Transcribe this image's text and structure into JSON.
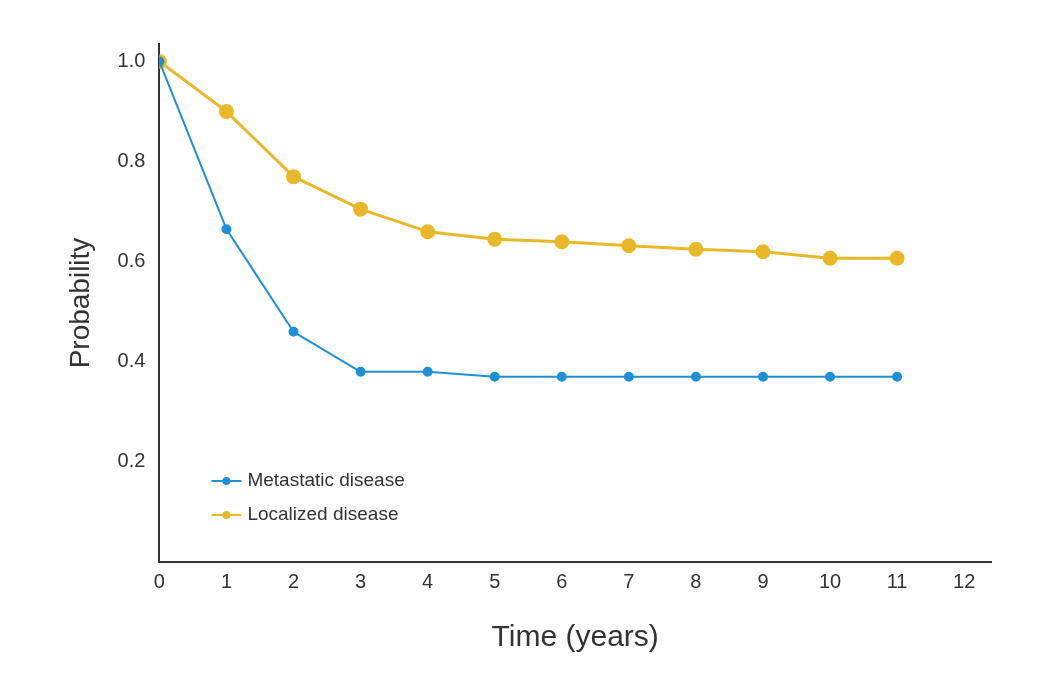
{
  "chart_data": {
    "type": "line",
    "xlabel": "Time (years)",
    "ylabel": "Probability",
    "x": [
      0,
      1,
      2,
      3,
      4,
      5,
      6,
      7,
      8,
      9,
      10,
      11
    ],
    "series": [
      {
        "name": "Metastatic disease",
        "color": "#1f8fd6",
        "values": [
          1.0,
          0.665,
          0.46,
          0.38,
          0.38,
          0.37,
          0.37,
          0.37,
          0.37,
          0.37,
          0.37,
          0.37
        ]
      },
      {
        "name": "Localized disease",
        "color": "#e8b828",
        "values": [
          1.0,
          0.9,
          0.77,
          0.705,
          0.66,
          0.645,
          0.64,
          0.632,
          0.625,
          0.62,
          0.607,
          0.607
        ]
      }
    ],
    "xlim": [
      0,
      12.4
    ],
    "xticks": [
      0,
      1,
      2,
      3,
      4,
      5,
      6,
      7,
      8,
      9,
      10,
      11,
      12
    ],
    "ylim": [
      0,
      1.035
    ],
    "yticks": [
      {
        "value": 0.2,
        "label": "0.2"
      },
      {
        "value": 0.4,
        "label": "0.4"
      },
      {
        "value": 0.6,
        "label": "0.6"
      },
      {
        "value": 0.8,
        "label": "0.8"
      },
      {
        "value": 1,
        "label": "1.0"
      }
    ],
    "grid": false,
    "legend": "bottom left",
    "marker": "circle",
    "line_style": "solid"
  }
}
